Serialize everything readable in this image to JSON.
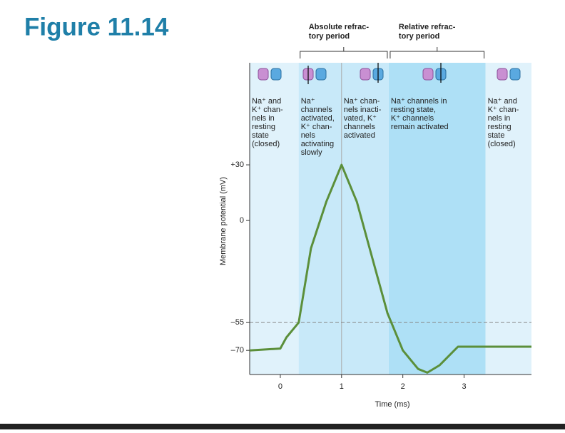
{
  "figure_title": "Figure 11.14",
  "chart_data": {
    "type": "line",
    "ylabel": "Membrane potential (mV)",
    "xlabel": "Time (ms)",
    "xlim": [
      -0.5,
      4.1
    ],
    "ylim": [
      -83,
      85
    ],
    "xticks": [
      0,
      1,
      2,
      3
    ],
    "yticks": [
      {
        "value": 30,
        "label": "+30"
      },
      0,
      {
        "value": -55,
        "label": "–55"
      },
      {
        "value": -70,
        "label": "–70"
      }
    ],
    "threshold": -55,
    "peak_marker": 1,
    "series": [
      {
        "color": "#5b8f3a",
        "x": [
          -0.5,
          0,
          0.1,
          0.3,
          0.5,
          0.75,
          1.0,
          1.25,
          1.5,
          1.75,
          2.0,
          2.25,
          2.4,
          2.6,
          2.9,
          3.0,
          4.1
        ],
        "values": [
          -70,
          -69,
          -63,
          -55,
          -15,
          10,
          30,
          10,
          -20,
          -50,
          -70,
          -80,
          -82,
          -78,
          -68,
          -68,
          -68
        ]
      }
    ],
    "regions": [
      {
        "x": [
          -0.5,
          0.3
        ],
        "color": "#e0f2fb",
        "lines": [
          "Na⁺ and",
          "K⁺ chan-",
          "nels in",
          "resting",
          "state",
          "(closed)"
        ]
      },
      {
        "x": [
          0.3,
          1.0
        ],
        "color": "#c8e9f9",
        "lines": [
          "Na⁺",
          "channels",
          "activated,",
          "K⁺ chan-",
          "nels",
          "activating",
          "slowly"
        ]
      },
      {
        "x": [
          1.0,
          1.77
        ],
        "color": "#c8e9f9",
        "lines": [
          "Na⁺ chan-",
          "nels inacti-",
          "vated, K⁺",
          "channels",
          "activated"
        ]
      },
      {
        "x": [
          1.77,
          3.35
        ],
        "color": "#aee0f6",
        "lines": [
          "Na⁺ channels in",
          "resting state,",
          "K⁺ channels",
          "remain activated"
        ]
      },
      {
        "x": [
          3.35,
          4.1
        ],
        "color": "#e0f2fb",
        "lines": [
          "Na⁺ and",
          "K⁺ chan-",
          "nels in",
          "resting",
          "state",
          "(closed)"
        ]
      }
    ],
    "brackets": [
      {
        "x": [
          0.3,
          1.77
        ],
        "lines": [
          "Absolute refrac-",
          "tory period"
        ]
      },
      {
        "x": [
          1.77,
          3.35
        ],
        "lines": [
          "Relative refrac-",
          "tory period"
        ]
      }
    ]
  }
}
